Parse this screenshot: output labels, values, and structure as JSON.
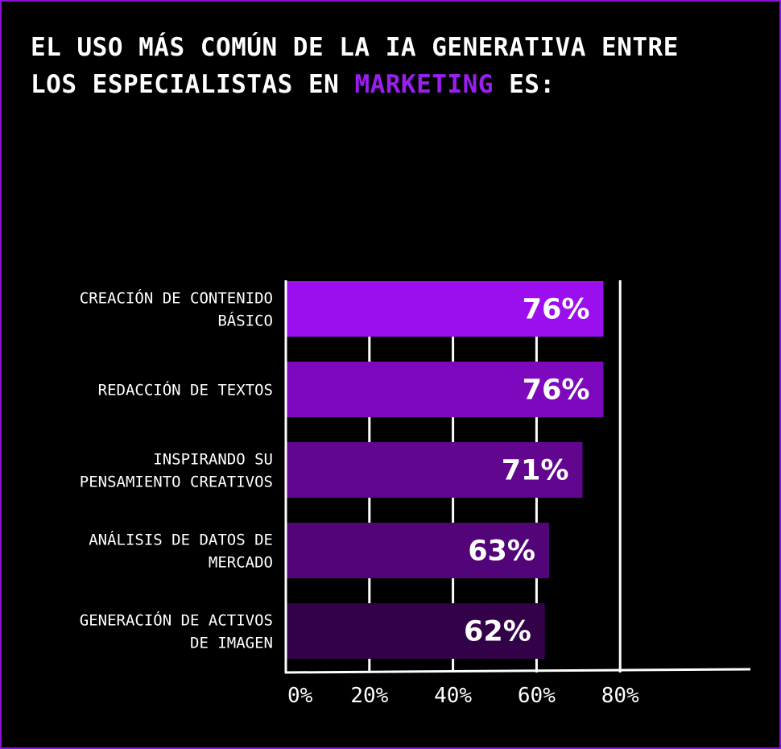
{
  "title": {
    "line1": "EL USO MÁS COMÚN DE LA IA GENERATIVA ENTRE",
    "line2_before": "LOS ESPECIALISTAS EN ",
    "line2_accent": "MARKETING",
    "line2_after": " ES:"
  },
  "colors": {
    "background": "#000000",
    "border": "#8a12d8",
    "accent": "#9a1ef0",
    "axis": "#ffffff"
  },
  "chart_data": {
    "type": "bar",
    "orientation": "horizontal",
    "categories": [
      [
        "CREACIÓN DE CONTENIDO",
        "BÁSICO"
      ],
      [
        "REDACCIÓN DE TEXTOS"
      ],
      [
        "INSPIRANDO SU",
        "PENSAMIENTO CREATIVOS"
      ],
      [
        "ANÁLISIS DE DATOS DE",
        "MERCADO"
      ],
      [
        "GENERACIÓN DE ACTIVOS",
        "DE IMAGEN"
      ]
    ],
    "values": [
      76,
      76,
      71,
      63,
      62
    ],
    "value_labels": [
      "76%",
      "76%",
      "71%",
      "63%",
      "62%"
    ],
    "bar_colors": [
      "#9b0eed",
      "#7d08bd",
      "#62058f",
      "#530478",
      "#330148"
    ],
    "xlim": [
      0,
      80
    ],
    "ticks": [
      0,
      20,
      40,
      60,
      80
    ],
    "tick_labels": [
      "0%",
      "20%",
      "40%",
      "60%",
      "80%"
    ],
    "grid": true,
    "legend": "none"
  }
}
